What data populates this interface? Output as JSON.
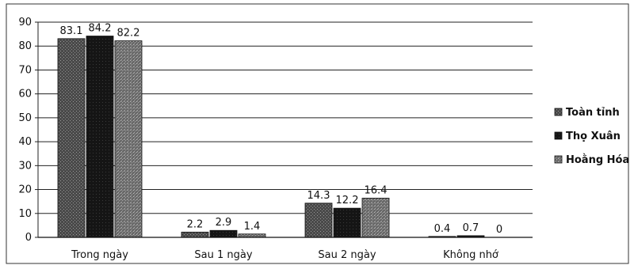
{
  "chart_data": {
    "type": "bar",
    "categories": [
      "Trong ngày",
      "Sau 1 ngày",
      "Sau 2 ngày",
      "Không nhớ"
    ],
    "series": [
      {
        "name": "Toàn tỉnh",
        "values": [
          83.1,
          2.2,
          14.3,
          0.4
        ],
        "color": "#4a4a4a"
      },
      {
        "name": "Thọ Xuân",
        "values": [
          84.2,
          2.9,
          12.2,
          0.7
        ],
        "color": "#1a1a1a"
      },
      {
        "name": "Hoằng Hóa",
        "values": [
          82.2,
          1.4,
          16.4,
          0
        ],
        "color": "#6e6e6e"
      }
    ],
    "data_labels": [
      [
        "83.1",
        "2.2",
        "14.3",
        "0.4"
      ],
      [
        "84.2",
        "2.9",
        "12.2",
        "0.7"
      ],
      [
        "82.2",
        "1.4",
        "16.4",
        "0"
      ]
    ],
    "y_ticks": [
      0,
      10,
      20,
      30,
      40,
      50,
      60,
      70,
      80,
      90
    ],
    "ylim": [
      0,
      90
    ],
    "grid": true,
    "legend_position": "right",
    "title": "",
    "xlabel": "",
    "ylabel": ""
  }
}
